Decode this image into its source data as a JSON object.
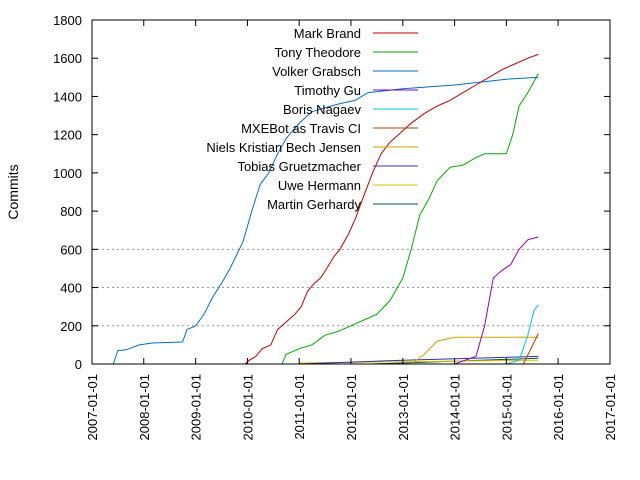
{
  "chart_data": {
    "type": "line",
    "title": "",
    "xlabel": "",
    "ylabel": "Commits",
    "ylim": [
      0,
      1800
    ],
    "xlim": [
      "2007-01-01",
      "2017-01-01"
    ],
    "y_ticks": [
      0,
      200,
      400,
      600,
      800,
      1000,
      1200,
      1400,
      1600,
      1800
    ],
    "x_ticks": [
      "2007-01-01",
      "2008-01-01",
      "2009-01-01",
      "2010-01-01",
      "2011-01-01",
      "2012-01-01",
      "2013-01-01",
      "2014-01-01",
      "2015-01-01",
      "2016-01-01",
      "2017-01-01"
    ],
    "grid": "horizontal dotted at 200, 400, 600",
    "legend_position": "top-center",
    "series": [
      {
        "name": "Mark Brand",
        "color": "#c00000",
        "points": [
          [
            "2009-12-15",
            0
          ],
          [
            "2010-01-15",
            20
          ],
          [
            "2010-03-01",
            40
          ],
          [
            "2010-04-15",
            80
          ],
          [
            "2010-06-15",
            100
          ],
          [
            "2010-08-01",
            180
          ],
          [
            "2010-10-01",
            220
          ],
          [
            "2010-12-01",
            260
          ],
          [
            "2011-01-15",
            300
          ],
          [
            "2011-03-01",
            380
          ],
          [
            "2011-04-15",
            420
          ],
          [
            "2011-06-01",
            450
          ],
          [
            "2011-07-15",
            500
          ],
          [
            "2011-09-01",
            560
          ],
          [
            "2011-10-15",
            600
          ],
          [
            "2011-12-15",
            680
          ],
          [
            "2012-02-01",
            760
          ],
          [
            "2012-04-01",
            880
          ],
          [
            "2012-06-01",
            1000
          ],
          [
            "2012-08-01",
            1100
          ],
          [
            "2012-10-01",
            1160
          ],
          [
            "2012-12-01",
            1200
          ],
          [
            "2013-03-01",
            1260
          ],
          [
            "2013-06-01",
            1310
          ],
          [
            "2013-09-01",
            1350
          ],
          [
            "2013-12-01",
            1380
          ],
          [
            "2014-03-01",
            1420
          ],
          [
            "2014-06-01",
            1460
          ],
          [
            "2014-09-01",
            1500
          ],
          [
            "2014-12-01",
            1540
          ],
          [
            "2015-03-01",
            1570
          ],
          [
            "2015-06-01",
            1600
          ],
          [
            "2015-08-15",
            1620
          ]
        ]
      },
      {
        "name": "Tony Theodore",
        "color": "#00aa00",
        "points": [
          [
            "2010-09-01",
            0
          ],
          [
            "2010-10-01",
            50
          ],
          [
            "2011-01-01",
            80
          ],
          [
            "2011-04-01",
            100
          ],
          [
            "2011-07-01",
            150
          ],
          [
            "2011-10-01",
            170
          ],
          [
            "2012-01-01",
            200
          ],
          [
            "2012-04-01",
            230
          ],
          [
            "2012-07-01",
            260
          ],
          [
            "2012-10-01",
            330
          ],
          [
            "2013-01-01",
            450
          ],
          [
            "2013-03-01",
            600
          ],
          [
            "2013-05-01",
            780
          ],
          [
            "2013-07-01",
            860
          ],
          [
            "2013-09-01",
            960
          ],
          [
            "2013-12-01",
            1030
          ],
          [
            "2014-03-01",
            1040
          ],
          [
            "2014-06-01",
            1080
          ],
          [
            "2014-08-01",
            1100
          ],
          [
            "2014-11-01",
            1100
          ],
          [
            "2015-01-01",
            1100
          ],
          [
            "2015-02-15",
            1200
          ],
          [
            "2015-04-01",
            1350
          ],
          [
            "2015-06-01",
            1420
          ],
          [
            "2015-08-15",
            1520
          ]
        ]
      },
      {
        "name": "Volker Grabsch",
        "color": "#0070c0",
        "points": [
          [
            "2007-06-01",
            0
          ],
          [
            "2007-07-01",
            70
          ],
          [
            "2007-09-01",
            75
          ],
          [
            "2007-12-01",
            100
          ],
          [
            "2008-03-01",
            110
          ],
          [
            "2008-10-01",
            115
          ],
          [
            "2008-11-01",
            180
          ],
          [
            "2009-01-01",
            200
          ],
          [
            "2009-03-01",
            260
          ],
          [
            "2009-05-01",
            350
          ],
          [
            "2009-07-01",
            420
          ],
          [
            "2009-09-01",
            500
          ],
          [
            "2009-12-01",
            640
          ],
          [
            "2010-02-01",
            800
          ],
          [
            "2010-04-01",
            940
          ],
          [
            "2010-06-01",
            1000
          ],
          [
            "2010-08-01",
            1100
          ],
          [
            "2010-10-01",
            1180
          ],
          [
            "2011-01-01",
            1260
          ],
          [
            "2011-04-01",
            1320
          ],
          [
            "2011-07-01",
            1340
          ],
          [
            "2011-10-01",
            1360
          ],
          [
            "2012-02-01",
            1380
          ],
          [
            "2012-05-01",
            1420
          ],
          [
            "2013-01-01",
            1440
          ],
          [
            "2014-01-01",
            1460
          ],
          [
            "2015-01-01",
            1490
          ],
          [
            "2015-08-15",
            1500
          ]
        ]
      },
      {
        "name": "Timothy Gu",
        "color": "#9000c0",
        "points": [
          [
            "2014-01-01",
            0
          ],
          [
            "2014-06-01",
            40
          ],
          [
            "2014-08-01",
            200
          ],
          [
            "2014-10-01",
            450
          ],
          [
            "2014-12-01",
            490
          ],
          [
            "2015-02-01",
            520
          ],
          [
            "2015-04-01",
            600
          ],
          [
            "2015-06-01",
            650
          ],
          [
            "2015-08-15",
            665
          ]
        ]
      },
      {
        "name": "Boris Nagaev",
        "color": "#00c8d0",
        "points": [
          [
            "2015-01-01",
            0
          ],
          [
            "2015-04-01",
            20
          ],
          [
            "2015-06-01",
            150
          ],
          [
            "2015-07-15",
            280
          ],
          [
            "2015-08-15",
            310
          ]
        ]
      },
      {
        "name": "MXEBot as Travis CI",
        "color": "#b04000",
        "points": [
          [
            "2015-05-01",
            0
          ],
          [
            "2015-08-15",
            160
          ]
        ]
      },
      {
        "name": "Niels Kristian Bech Jensen",
        "color": "#d0a000",
        "points": [
          [
            "2013-03-01",
            0
          ],
          [
            "2013-06-01",
            50
          ],
          [
            "2013-09-01",
            120
          ],
          [
            "2014-01-01",
            140
          ],
          [
            "2015-08-15",
            140
          ]
        ]
      },
      {
        "name": "Tobias Gruetzmacher",
        "color": "#3030b0",
        "points": [
          [
            "2011-01-01",
            0
          ],
          [
            "2013-01-01",
            20
          ],
          [
            "2015-08-15",
            40
          ]
        ]
      },
      {
        "name": "Uwe Hermann",
        "color": "#e0c000",
        "points": [
          [
            "2011-01-01",
            5
          ],
          [
            "2015-08-15",
            20
          ]
        ]
      },
      {
        "name": "Martin Gerhardy",
        "color": "#006030",
        "points": [
          [
            "2012-06-01",
            0
          ],
          [
            "2015-08-15",
            30
          ]
        ]
      }
    ]
  }
}
